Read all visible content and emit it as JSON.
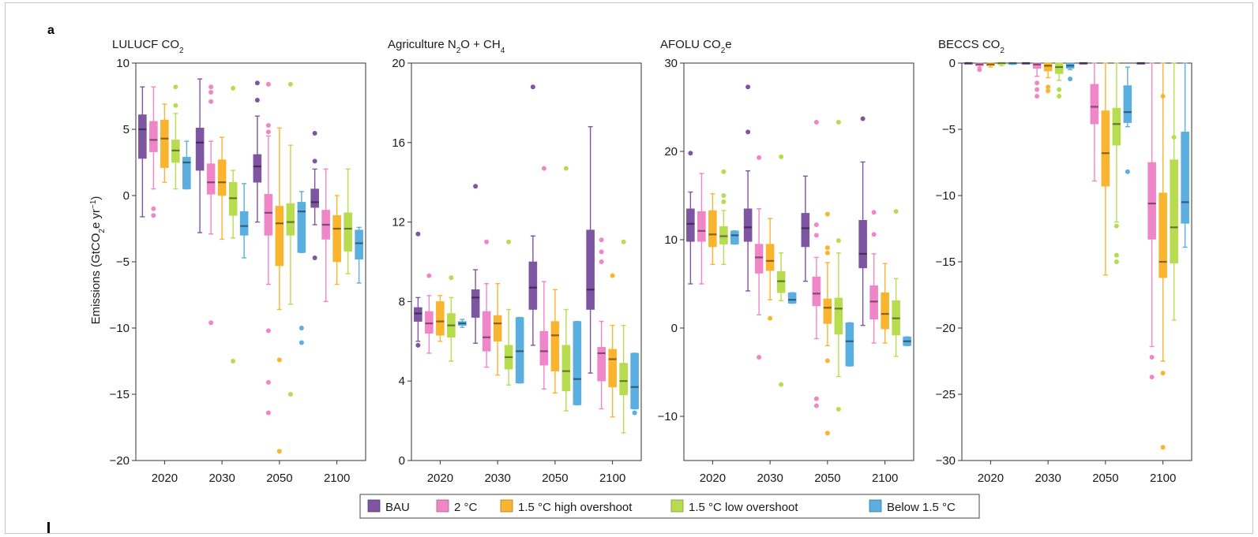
{
  "panel_label": "a",
  "colors": {
    "BAU": "#7d55a0",
    "2 °C": "#ef86c8",
    "1.5 °C high overshoot": "#f9b430",
    "1.5 °C low overshoot": "#b7dc4f",
    "Below 1.5 °C": "#5aaee0"
  },
  "ylabel_text": "Emissions (GtCO",
  "ylabel_sub": "2",
  "ylabel_tail1": "e yr",
  "ylabel_sup": "−1",
  "ylabel_tail2": ")",
  "chart_data": [
    {
      "type": "box",
      "title": "LULUCF CO",
      "title_sub": "2",
      "title_tail": "",
      "ylim": [
        -20,
        10
      ],
      "yticks": [
        -20,
        -15,
        -10,
        -5,
        0,
        5,
        10
      ],
      "categories": [
        "2020",
        "2030",
        "2050",
        "2100"
      ],
      "series": [
        {
          "name": "BAU",
          "boxes": [
            [
              -1.6,
              2.8,
              5.0,
              6.1,
              8.2,
              []
            ],
            [
              -2.8,
              1.9,
              4.0,
              5.1,
              8.8,
              []
            ],
            [
              -2.0,
              1.0,
              2.2,
              3.1,
              6.0,
              [
                8.5,
                7.2
              ]
            ],
            [
              -2.2,
              -0.9,
              -0.5,
              0.5,
              2.0,
              [
                4.7,
                2.6,
                -4.7
              ]
            ]
          ]
        },
        {
          "name": "2 °C",
          "boxes": [
            [
              0.5,
              3.3,
              4.2,
              5.6,
              8.2,
              [
                -1.0,
                -1.5
              ]
            ],
            [
              -2.9,
              0.1,
              1.0,
              2.4,
              4.1,
              [
                8.2,
                7.8,
                7.1,
                -9.6
              ]
            ],
            [
              -6.7,
              -3.0,
              -1.3,
              0.1,
              4.5,
              [
                8.4,
                5.3,
                4.8,
                -10.2,
                -14.1,
                -16.4
              ]
            ],
            [
              -8.0,
              -3.3,
              -2.2,
              -1.1,
              2.0,
              []
            ]
          ]
        },
        {
          "name": "1.5 °C high overshoot",
          "boxes": [
            [
              1.0,
              2.1,
              4.3,
              5.7,
              6.9,
              []
            ],
            [
              -3.3,
              0.0,
              1.0,
              2.7,
              4.4,
              []
            ],
            [
              -8.6,
              -5.3,
              -2.1,
              -0.8,
              5.1,
              [
                -12.4,
                -19.3
              ]
            ],
            [
              -6.7,
              -5.0,
              -2.5,
              -1.5,
              0.0,
              []
            ]
          ]
        },
        {
          "name": "1.5 °C low overshoot",
          "boxes": [
            [
              0.5,
              2.5,
              3.4,
              4.2,
              6.2,
              [
                8.2,
                6.8
              ]
            ],
            [
              -3.2,
              -1.5,
              -0.2,
              1.0,
              1.9,
              [
                8.1,
                -12.5
              ]
            ],
            [
              -8.2,
              -3.0,
              -2.0,
              -0.6,
              3.8,
              [
                8.4,
                -15.0
              ]
            ],
            [
              -5.9,
              -4.2,
              -2.5,
              -1.3,
              2.0,
              []
            ]
          ]
        },
        {
          "name": "Below 1.5 °C",
          "boxes": [
            [
              0.5,
              0.5,
              2.5,
              2.9,
              4.1,
              []
            ],
            [
              -4.7,
              -3.0,
              -2.3,
              -1.2,
              0.9,
              []
            ],
            [
              -4.3,
              -4.3,
              -1.2,
              -0.5,
              0.3,
              [
                -10.0,
                -11.1
              ]
            ],
            [
              -6.6,
              -4.8,
              -3.6,
              -2.6,
              -2.4,
              []
            ]
          ]
        }
      ]
    },
    {
      "type": "box",
      "title": "Agriculture N",
      "title_sub": "2",
      "title_tail": "O + CH",
      "title_sub2": "4",
      "ylim": [
        0,
        20
      ],
      "yticks": [
        0,
        4,
        8,
        12,
        16,
        20
      ],
      "categories": [
        "2020",
        "2030",
        "2050",
        "2100"
      ],
      "series": [
        {
          "name": "BAU",
          "boxes": [
            [
              6.0,
              7.0,
              7.4,
              7.7,
              8.2,
              [
                11.4,
                5.8
              ]
            ],
            [
              5.9,
              7.2,
              8.2,
              8.6,
              9.6,
              [
                13.8
              ]
            ],
            [
              5.8,
              7.6,
              8.7,
              10.0,
              11.3,
              [
                18.8
              ]
            ],
            [
              4.4,
              7.6,
              8.6,
              11.6,
              16.8,
              []
            ]
          ]
        },
        {
          "name": "2 °C",
          "boxes": [
            [
              5.4,
              6.4,
              6.9,
              7.5,
              8.3,
              [
                9.3
              ]
            ],
            [
              4.7,
              5.5,
              6.2,
              7.5,
              8.9,
              [
                11.0
              ]
            ],
            [
              3.6,
              4.8,
              5.5,
              6.5,
              9.0,
              [
                14.7
              ]
            ],
            [
              2.6,
              4.0,
              5.4,
              5.7,
              7.0,
              [
                11.1,
                10.5,
                10.0
              ]
            ]
          ]
        },
        {
          "name": "1.5 °C high overshoot",
          "boxes": [
            [
              6.0,
              6.3,
              7.0,
              8.0,
              8.3,
              []
            ],
            [
              4.3,
              6.0,
              6.9,
              7.3,
              8.9,
              []
            ],
            [
              3.4,
              4.5,
              6.3,
              7.0,
              8.6,
              []
            ],
            [
              2.2,
              3.7,
              5.1,
              5.6,
              6.8,
              [
                9.3
              ]
            ]
          ]
        },
        {
          "name": "1.5 °C low overshoot",
          "boxes": [
            [
              5.0,
              6.2,
              6.8,
              7.4,
              8.2,
              [
                9.2
              ]
            ],
            [
              3.8,
              4.6,
              5.2,
              5.8,
              7.6,
              [
                11.0
              ]
            ],
            [
              2.5,
              3.5,
              4.5,
              5.8,
              7.6,
              [
                14.7
              ]
            ],
            [
              1.4,
              3.3,
              4.0,
              4.9,
              6.8,
              [
                11.0
              ]
            ]
          ]
        },
        {
          "name": "Below 1.5 °C",
          "boxes": [
            [
              6.7,
              6.8,
              6.9,
              7.0,
              7.1,
              []
            ],
            [
              3.9,
              3.9,
              5.5,
              7.2,
              7.2,
              []
            ],
            [
              2.8,
              2.8,
              4.1,
              7.0,
              7.0,
              []
            ],
            [
              2.6,
              2.6,
              3.7,
              5.4,
              5.4,
              [
                2.4
              ]
            ]
          ]
        }
      ]
    },
    {
      "type": "box",
      "title": "AFOLU CO",
      "title_sub": "2",
      "title_tail": "e",
      "ylim": [
        -15,
        30
      ],
      "yticks": [
        -10,
        0,
        10,
        20,
        30
      ],
      "categories": [
        "2020",
        "2030",
        "2050",
        "2100"
      ],
      "series": [
        {
          "name": "BAU",
          "boxes": [
            [
              5.0,
              9.8,
              11.8,
              13.5,
              15.4,
              [
                19.8
              ]
            ],
            [
              4.2,
              9.8,
              11.4,
              13.5,
              17.8,
              [
                27.3,
                22.2
              ]
            ],
            [
              5.3,
              9.2,
              11.3,
              13.0,
              17.2,
              []
            ],
            [
              0.3,
              6.8,
              8.4,
              12.2,
              18.8,
              [
                23.7
              ]
            ]
          ]
        },
        {
          "name": "2 °C",
          "boxes": [
            [
              5.0,
              9.8,
              11.0,
              13.2,
              17.5,
              []
            ],
            [
              1.5,
              6.2,
              8.0,
              9.5,
              13.5,
              [
                19.3,
                -3.3
              ]
            ],
            [
              -1.2,
              2.5,
              3.9,
              5.8,
              8.0,
              [
                23.3,
                11.7,
                10.5,
                -8.0,
                -8.8
              ]
            ],
            [
              -1.7,
              1.0,
              3.0,
              4.8,
              8.4,
              [
                13.1,
                10.6
              ]
            ]
          ]
        },
        {
          "name": "1.5 °C high overshoot",
          "boxes": [
            [
              7.2,
              9.2,
              10.6,
              13.3,
              15.2,
              []
            ],
            [
              3.2,
              6.5,
              7.6,
              9.5,
              12.4,
              [
                1.1
              ]
            ],
            [
              -2.0,
              0.5,
              2.3,
              3.3,
              7.4,
              [
                12.9,
                9.1,
                8.5,
                -3.7,
                -11.9
              ]
            ],
            [
              -1.7,
              -0.1,
              1.6,
              4.0,
              7.3,
              []
            ]
          ]
        },
        {
          "name": "1.5 °C low overshoot",
          "boxes": [
            [
              7.2,
              9.5,
              10.4,
              11.5,
              13.3,
              [
                17.7,
                15.0,
                14.3
              ]
            ],
            [
              3.1,
              4.0,
              5.3,
              6.4,
              8.5,
              [
                19.4,
                -6.4
              ]
            ],
            [
              -5.5,
              -0.7,
              2.2,
              3.4,
              8.5,
              [
                23.3,
                9.9,
                -9.2
              ]
            ],
            [
              -3.2,
              -0.8,
              1.1,
              3.1,
              5.6,
              [
                13.2
              ]
            ]
          ]
        },
        {
          "name": "Below 1.5 °C",
          "boxes": [
            [
              9.5,
              9.5,
              10.5,
              11.0,
              11.0,
              []
            ],
            [
              2.8,
              2.8,
              3.2,
              4.0,
              4.0,
              []
            ],
            [
              -4.3,
              -4.3,
              -1.5,
              0.6,
              0.6,
              []
            ],
            [
              -1.0,
              -1.0,
              -1.5,
              -2.0,
              -2.0,
              []
            ]
          ]
        }
      ]
    },
    {
      "type": "box",
      "title": "BECCS CO",
      "title_sub": "2",
      "title_tail": "",
      "ylim": [
        -30,
        0
      ],
      "yticks": [
        -30,
        -25,
        -20,
        -15,
        -10,
        -5,
        0
      ],
      "categories": [
        "2020",
        "2030",
        "2050",
        "2100"
      ],
      "series": [
        {
          "name": "BAU",
          "boxes": [
            [
              0,
              0,
              0,
              0,
              0,
              []
            ],
            [
              0,
              0,
              0,
              0,
              0,
              []
            ],
            [
              0,
              0,
              0,
              0,
              0,
              []
            ],
            [
              0,
              0,
              0,
              0,
              0,
              []
            ]
          ]
        },
        {
          "name": "2 °C",
          "boxes": [
            [
              -0.3,
              -0.2,
              -0.1,
              0,
              0,
              [
                -0.5
              ]
            ],
            [
              -1.0,
              -0.4,
              -0.1,
              0,
              0,
              [
                -1.5,
                -2.0,
                -2.5
              ]
            ],
            [
              -8.9,
              -4.6,
              -3.3,
              -1.6,
              0,
              []
            ],
            [
              -21.4,
              -13.3,
              -10.6,
              -7.5,
              0,
              [
                -22.2,
                -23.7
              ]
            ]
          ]
        },
        {
          "name": "1.5 °C high overshoot",
          "boxes": [
            [
              -0.3,
              -0.2,
              -0.1,
              0,
              0,
              []
            ],
            [
              -1.1,
              -0.6,
              -0.2,
              0,
              0,
              [
                -1.8,
                -2.1
              ]
            ],
            [
              -16.0,
              -9.3,
              -6.8,
              -3.6,
              0,
              []
            ],
            [
              -22.5,
              -16.2,
              -15.0,
              -9.8,
              0,
              [
                -2.5,
                -23.4,
                -29.0
              ]
            ]
          ]
        },
        {
          "name": "1.5 °C low overshoot",
          "boxes": [
            [
              -0.2,
              -0.1,
              0,
              0,
              0,
              []
            ],
            [
              -1.3,
              -0.8,
              -0.3,
              0,
              0,
              [
                -2.0,
                -2.5
              ]
            ],
            [
              -12.0,
              -6.2,
              -4.6,
              -3.4,
              0,
              [
                -12.3,
                -14.5,
                -15.0
              ]
            ],
            [
              -19.4,
              -15.1,
              -12.4,
              -7.3,
              0,
              [
                -5.6
              ]
            ]
          ]
        },
        {
          "name": "Below 1.5 °C",
          "boxes": [
            [
              -0.1,
              -0.1,
              0,
              0,
              0,
              []
            ],
            [
              -0.5,
              -0.4,
              -0.2,
              0,
              0,
              [
                -1.2
              ]
            ],
            [
              -4.8,
              -4.5,
              -3.7,
              -1.7,
              -0.3,
              [
                -8.2
              ]
            ],
            [
              -13.9,
              -12.1,
              -10.5,
              -5.2,
              0,
              []
            ]
          ]
        }
      ]
    }
  ]
}
